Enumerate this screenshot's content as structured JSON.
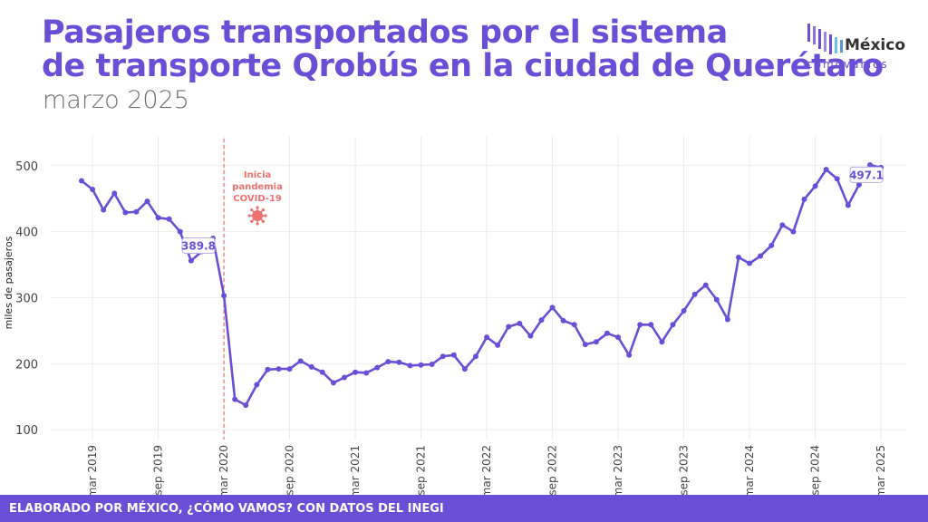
{
  "header": {
    "title_line1": "Pasajeros transportados por el sistema",
    "title_line2": "de transporte Qrobús en la ciudad de Querétaro",
    "subtitle": "marzo 2025"
  },
  "logo": {
    "top_text": "México",
    "bottom_text": "cómovamos"
  },
  "footer": {
    "text": "ELABORADO POR MÉXICO, ¿CÓMO VAMOS? CON DATOS DEL INEGI"
  },
  "chart_data": {
    "type": "line",
    "ylabel": "miles de pasajeros",
    "xlabel": "",
    "ylim": [
      85,
      545
    ],
    "yticks": [
      100,
      200,
      300,
      400,
      500
    ],
    "xticks": [
      "mar 2019",
      "sep 2019",
      "mar 2020",
      "sep 2020",
      "mar 2021",
      "sep 2021",
      "mar 2022",
      "sep 2022",
      "mar 2023",
      "sep 2023",
      "mar 2024",
      "sep 2024",
      "mar 2025"
    ],
    "x_start": "feb 2019",
    "line_color": "#6a4fd6",
    "grid": true,
    "values": [
      477,
      464,
      433,
      458,
      429,
      430,
      446,
      421,
      419,
      400,
      356,
      370,
      389.8,
      303,
      146,
      137,
      168,
      191,
      192,
      192,
      204,
      195,
      187,
      171,
      179,
      187,
      186,
      194,
      203,
      202,
      197,
      198,
      199,
      211,
      213,
      192,
      211,
      240,
      228,
      256,
      261,
      242,
      266,
      285,
      265,
      259,
      229,
      233,
      246,
      240,
      213,
      259,
      259,
      233,
      259,
      280,
      305,
      319,
      297,
      267,
      361,
      352,
      363,
      379,
      410,
      400,
      449,
      469,
      494,
      480,
      440,
      471,
      501,
      497.1
    ],
    "value_labels": [
      {
        "text": "389.8",
        "index": 12
      },
      {
        "text": "497.1",
        "index": 73
      }
    ],
    "annotation": {
      "lines": [
        "Inicia",
        "pandemia",
        "COVID-19"
      ],
      "color": "#f07070",
      "index": 13
    }
  }
}
